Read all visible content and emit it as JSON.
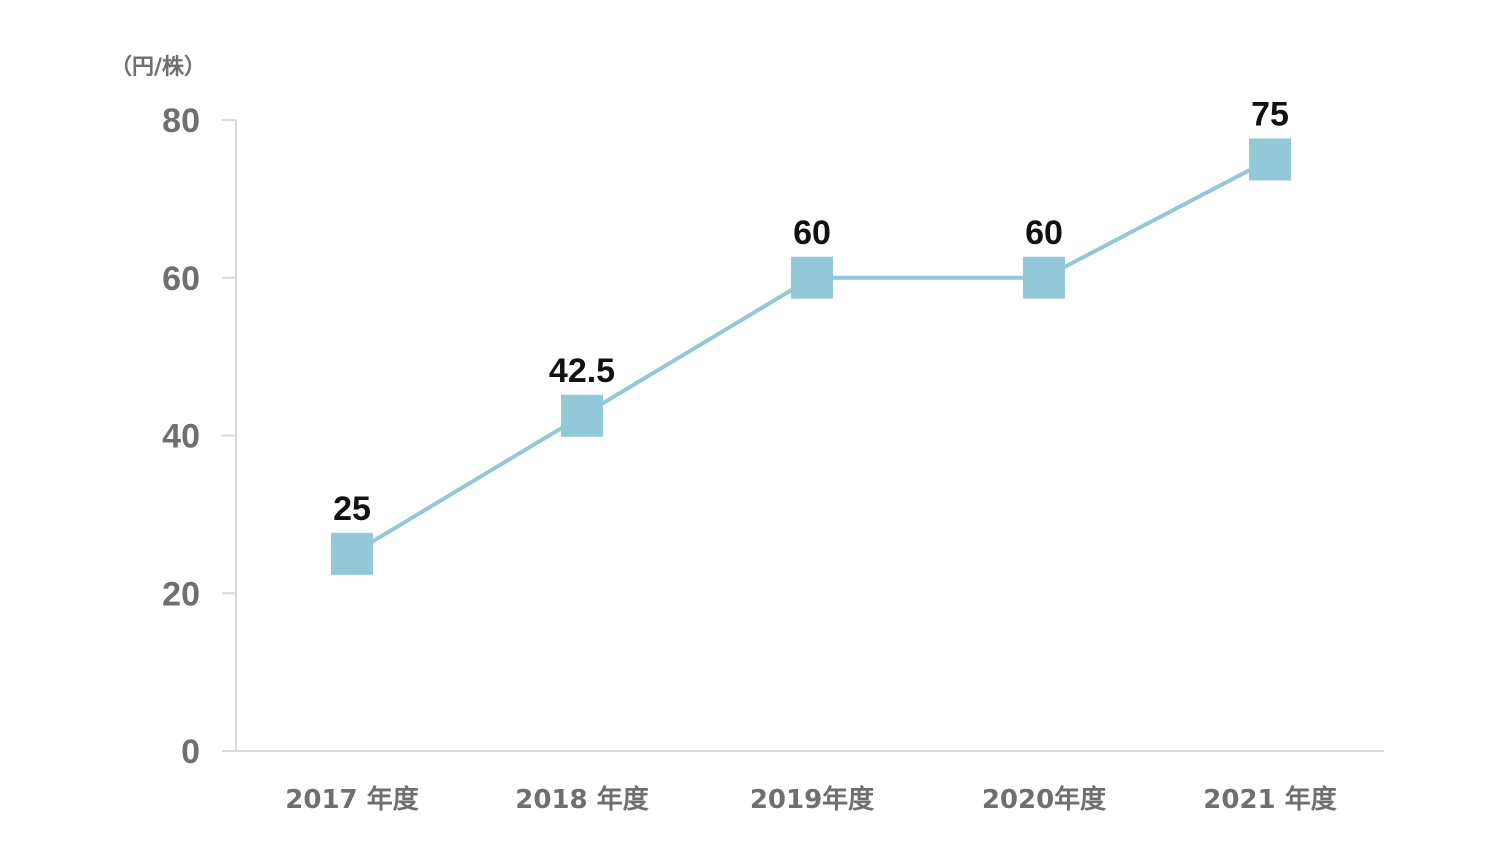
{
  "chart_data": {
    "type": "line",
    "unit_label": "（円/株）",
    "categories": [
      "2017 年度",
      "2018 年度",
      "2019年度",
      "2020年度",
      "2021 年度"
    ],
    "series": [
      {
        "values": [
          25,
          42.5,
          60,
          60,
          75
        ],
        "color": "#92c8d8"
      }
    ],
    "data_labels": [
      "25",
      "42.5",
      "60",
      "60",
      "75"
    ],
    "yticks": [
      "0",
      "20",
      "40",
      "60",
      "80"
    ],
    "ylim": [
      0,
      80
    ],
    "grid": false,
    "axis_color": "#d9d9d9"
  }
}
